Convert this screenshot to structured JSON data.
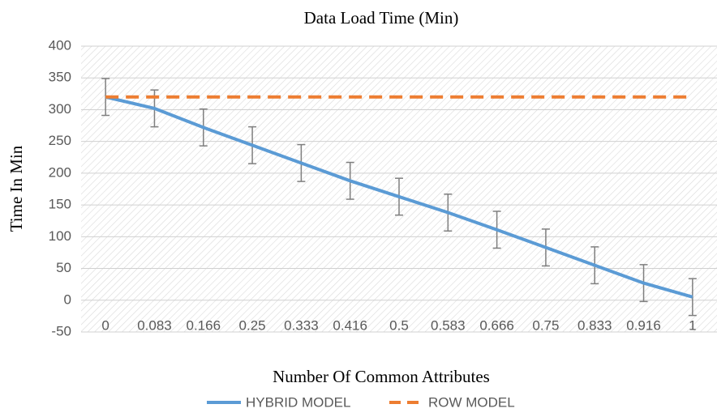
{
  "chart_data": {
    "type": "line",
    "title": "Data Load Time (Min)",
    "x_label": "Number Of Common Attributes",
    "y_label": "Time In Min",
    "categories": [
      "0",
      "0.083",
      "0.166",
      "0.25",
      "0.333",
      "0.416",
      "0.5",
      "0.583",
      "0.666",
      "0.75",
      "0.833",
      "0.916",
      "1"
    ],
    "series": [
      {
        "name": "HYBRID MODEL",
        "color": "#5b9bd5",
        "dashed": false,
        "values": [
          320,
          302,
          272,
          244,
          216,
          188,
          163,
          138,
          111,
          83,
          55,
          27,
          5
        ],
        "errors": [
          29,
          29,
          29,
          29,
          29,
          29,
          29,
          29,
          29,
          29,
          29,
          29,
          29
        ]
      },
      {
        "name": "ROW MODEL",
        "color": "#ed7d31",
        "dashed": true,
        "values": [
          320,
          320,
          320,
          320,
          320,
          320,
          320,
          320,
          320,
          320,
          320,
          320,
          320
        ]
      }
    ],
    "ylim": [
      -50,
      400
    ],
    "yticks": [
      -50,
      0,
      50,
      100,
      150,
      200,
      250,
      300,
      350,
      400
    ],
    "grid": true,
    "legend": "bottom"
  }
}
